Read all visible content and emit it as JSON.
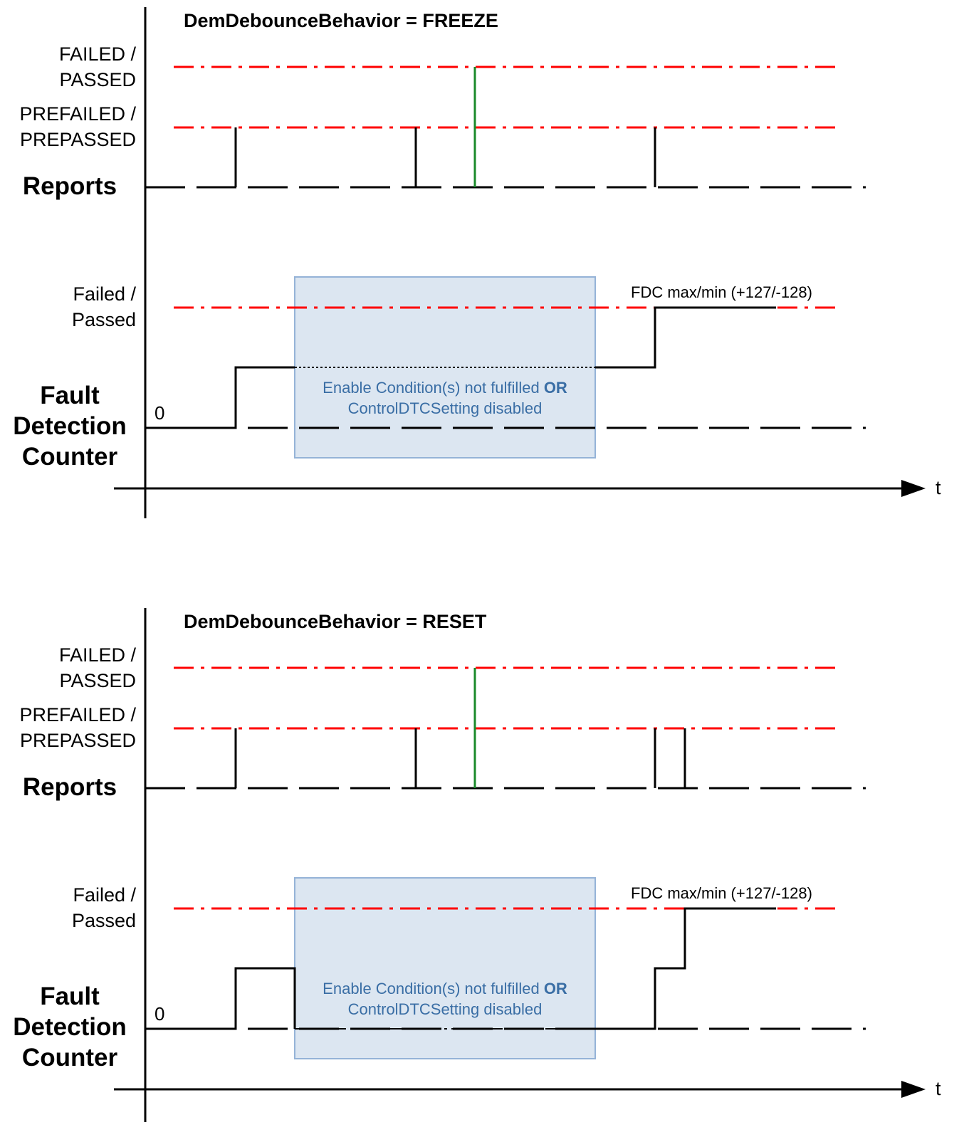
{
  "diagrams": [
    {
      "title": "DemDebounceBehavior = FREEZE",
      "labels": {
        "failed_passed_1": "FAILED /",
        "failed_passed_2": "PASSED",
        "prefailed_1": "PREFAILED /",
        "prefailed_2": "PREPASSED",
        "reports": "Reports",
        "fc_failed_1": "Failed /",
        "fc_failed_2": "Passed",
        "fdc_1": "Fault",
        "fdc_2": "Detection",
        "fdc_3": "Counter",
        "zero": "0",
        "time_axis": "t",
        "fdc_max": "FDC max/min (+127/-128)",
        "box_line1": "Enable Condition(s) not fulfilled",
        "box_or": "OR",
        "box_line2": "ControlDTCSetting disabled"
      },
      "colors": {
        "threshold": "#ff0000",
        "failed_report": "#1a8a2a",
        "box_fill": "#dce6f1",
        "box_border": "#95b3d7",
        "box_text": "#3a6ea5"
      }
    },
    {
      "title": "DemDebounceBehavior = RESET",
      "labels": {
        "failed_passed_1": "FAILED /",
        "failed_passed_2": "PASSED",
        "prefailed_1": "PREFAILED /",
        "prefailed_2": "PREPASSED",
        "reports": "Reports",
        "fc_failed_1": "Failed /",
        "fc_failed_2": "Passed",
        "fdc_1": "Fault",
        "fdc_2": "Detection",
        "fdc_3": "Counter",
        "zero": "0",
        "time_axis": "t",
        "fdc_max": "FDC max/min (+127/-128)",
        "box_line1": "Enable Condition(s) not fulfilled",
        "box_or": "OR",
        "box_line2": "ControlDTCSetting disabled"
      },
      "colors": {
        "threshold": "#ff0000",
        "failed_report": "#1a8a2a",
        "box_fill": "#dce6f1",
        "box_border": "#95b3d7",
        "box_text": "#3a6ea5"
      }
    }
  ]
}
